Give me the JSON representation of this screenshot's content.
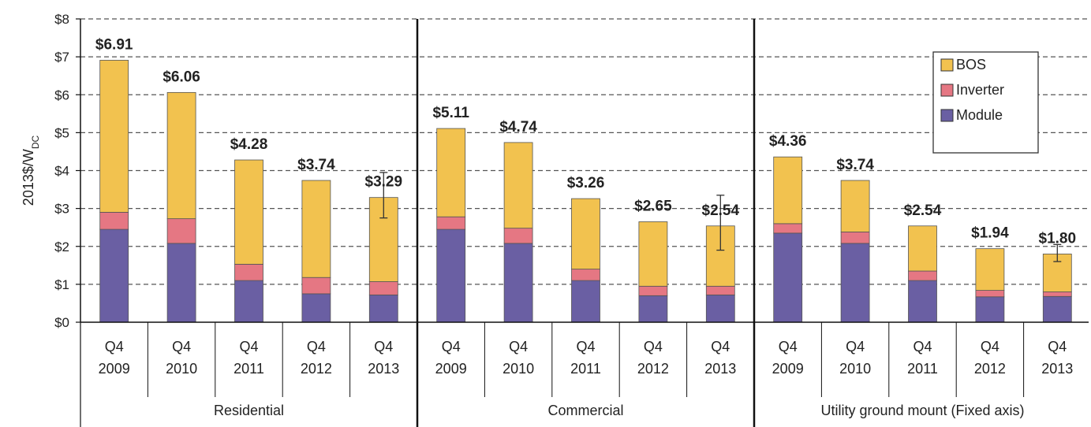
{
  "chart_data": {
    "type": "bar",
    "stacked": true,
    "ylabel": "2013$/W",
    "ylabel_subscript": "DC",
    "ylim": [
      0,
      8
    ],
    "yticks": [
      "$0",
      "$1",
      "$2",
      "$3",
      "$4",
      "$5",
      "$6",
      "$7",
      "$8"
    ],
    "grid": "horizontal dashed",
    "legend_position": "top-right",
    "legend": [
      "BOS",
      "Inverter",
      "Module"
    ],
    "groups": [
      {
        "name": "Residential",
        "categories": [
          [
            "Q4",
            "2009"
          ],
          [
            "Q4",
            "2010"
          ],
          [
            "Q4",
            "2011"
          ],
          [
            "Q4",
            "2012"
          ],
          [
            "Q4",
            "2013"
          ]
        ],
        "totals": [
          "$6.91",
          "$6.06",
          "$4.28",
          "$3.74",
          "$3.29"
        ],
        "total_values": [
          6.91,
          6.06,
          4.28,
          3.74,
          3.29
        ],
        "module": [
          2.45,
          2.08,
          1.1,
          0.75,
          0.72
        ],
        "inverter": [
          0.45,
          0.65,
          0.43,
          0.43,
          0.35
        ],
        "bos": [
          4.01,
          3.33,
          2.75,
          2.56,
          2.22
        ],
        "error_bar": [
          null,
          null,
          null,
          null,
          [
            2.75,
            3.95
          ]
        ]
      },
      {
        "name": "Commercial",
        "categories": [
          [
            "Q4",
            "2009"
          ],
          [
            "Q4",
            "2010"
          ],
          [
            "Q4",
            "2011"
          ],
          [
            "Q4",
            "2012"
          ],
          [
            "Q4",
            "2013"
          ]
        ],
        "totals": [
          "$5.11",
          "$4.74",
          "$3.26",
          "$2.65",
          "$2.54"
        ],
        "total_values": [
          5.11,
          4.74,
          3.26,
          2.65,
          2.54
        ],
        "module": [
          2.45,
          2.08,
          1.1,
          0.7,
          0.72
        ],
        "inverter": [
          0.33,
          0.4,
          0.3,
          0.25,
          0.23
        ],
        "bos": [
          2.33,
          2.26,
          1.86,
          1.7,
          1.59
        ],
        "error_bar": [
          null,
          null,
          null,
          null,
          [
            1.9,
            3.35
          ]
        ]
      },
      {
        "name": "Utility ground mount (Fixed axis)",
        "categories": [
          [
            "Q4",
            "2009"
          ],
          [
            "Q4",
            "2010"
          ],
          [
            "Q4",
            "2011"
          ],
          [
            "Q4",
            "2012"
          ],
          [
            "Q4",
            "2013"
          ]
        ],
        "totals": [
          "$4.36",
          "$3.74",
          "$2.54",
          "$1.94",
          "$1.80"
        ],
        "total_values": [
          4.36,
          3.74,
          2.54,
          1.94,
          1.8
        ],
        "module": [
          2.35,
          2.08,
          1.1,
          0.67,
          0.68
        ],
        "inverter": [
          0.25,
          0.3,
          0.25,
          0.17,
          0.12
        ],
        "bos": [
          1.76,
          1.36,
          1.19,
          1.1,
          1.0
        ],
        "error_bar": [
          null,
          null,
          null,
          null,
          [
            1.6,
            2.05
          ]
        ]
      }
    ],
    "colors": {
      "bos": "#f2c24f",
      "inverter": "#e57783",
      "module": "#6a5fa3",
      "grid": "#555555",
      "axis": "#111111"
    }
  }
}
